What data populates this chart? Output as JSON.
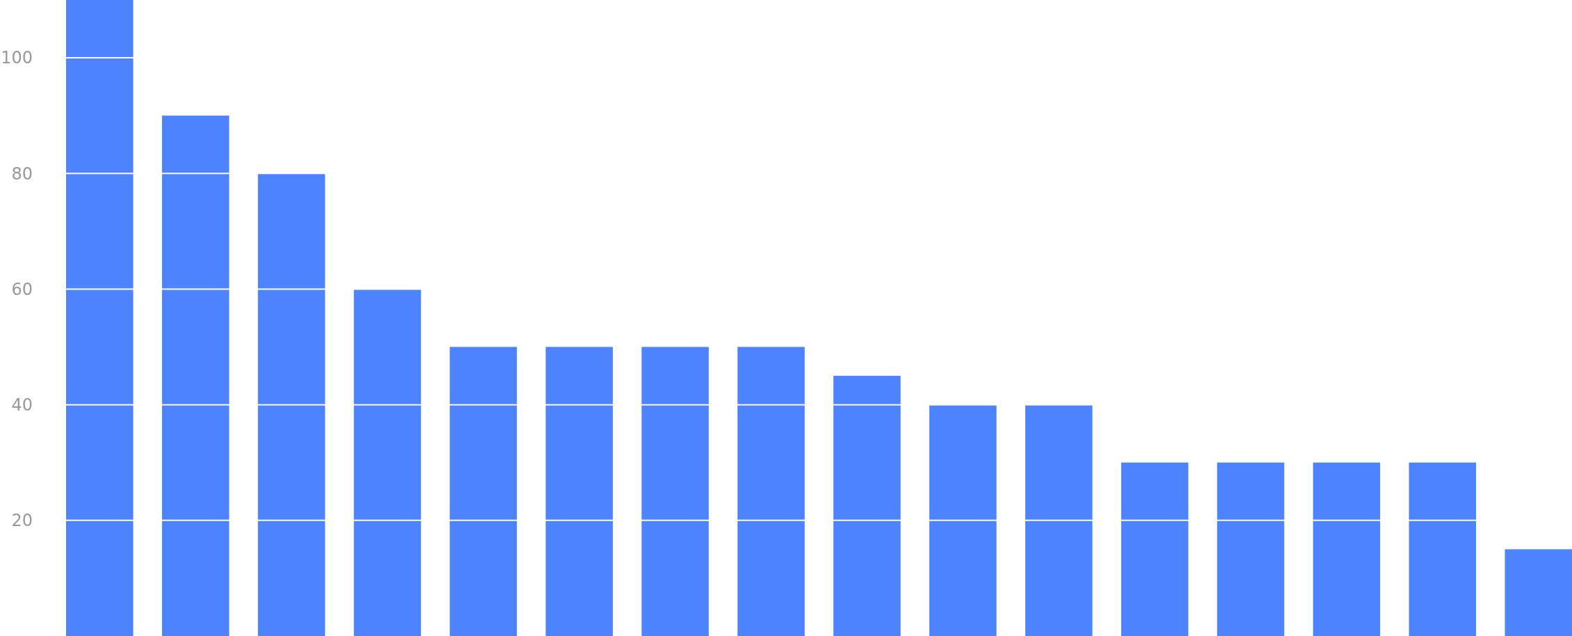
{
  "chart_data": {
    "type": "bar",
    "categories": [
      null,
      null,
      null,
      null,
      null,
      null,
      null,
      null,
      null,
      null,
      null,
      null,
      null,
      null,
      null,
      null
    ],
    "values": [
      110,
      90,
      80,
      60,
      50,
      50,
      50,
      50,
      45,
      40,
      40,
      30,
      30,
      30,
      30,
      15
    ],
    "color": "#4d83ff",
    "ylim": [
      0,
      110
    ],
    "yticks": [
      20,
      40,
      60,
      80,
      100
    ],
    "grid": "y"
  }
}
